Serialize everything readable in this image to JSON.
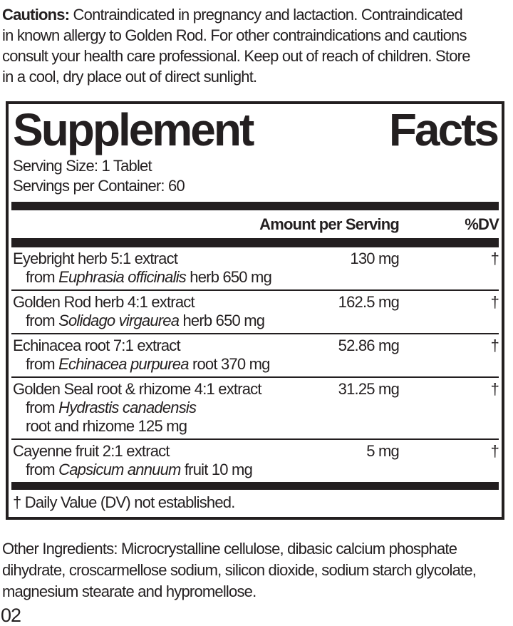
{
  "cautions": {
    "bold_label": "Cautions:",
    "line1_rest": " Contraindicated in pregnancy and lactaction. Contraindicated",
    "line2": "in known allergy to Golden Rod. For other contraindications and cautions",
    "line3": "consult your health care professional. Keep out of reach of children. Store",
    "line4": "in a cool, dry place out of direct sunlight."
  },
  "facts": {
    "title_word1": "Supplement",
    "title_word2": "Facts",
    "serving_size": "Serving Size: 1 Tablet",
    "servings_per_container": "Servings per Container: 60",
    "header": {
      "amount": "Amount per Serving",
      "dv": "%DV"
    },
    "rows": [
      {
        "name": "Eyebright herb 5:1 extract",
        "amount": "130 mg",
        "dv": "†",
        "sub": [
          {
            "pre": "from ",
            "italic": "Euphrasia officinalis",
            "post": " herb 650 mg"
          }
        ]
      },
      {
        "name": "Golden Rod herb 4:1 extract",
        "amount": "162.5 mg",
        "dv": "†",
        "sub": [
          {
            "pre": "from ",
            "italic": "Solidago virgaurea",
            "post": " herb 650 mg"
          }
        ]
      },
      {
        "name": "Echinacea root 7:1 extract",
        "amount": "52.86 mg",
        "dv": "†",
        "sub": [
          {
            "pre": "from ",
            "italic": "Echinacea purpurea",
            "post": " root 370 mg"
          }
        ]
      },
      {
        "name": "Golden Seal root & rhizome 4:1 extract",
        "amount": "31.25 mg",
        "dv": "†",
        "sub": [
          {
            "pre": "from ",
            "italic": "Hydrastis canadensis",
            "post": ""
          },
          {
            "pre": "root and rhizome 125 mg",
            "italic": "",
            "post": ""
          }
        ]
      },
      {
        "name": "Cayenne fruit 2:1 extract",
        "amount": "5 mg",
        "dv": "†",
        "sub": [
          {
            "pre": "from ",
            "italic": "Capsicum annuum",
            "post": " fruit 10 mg"
          }
        ]
      }
    ],
    "footnote": "† Daily Value (DV) not established."
  },
  "other_ingredients": {
    "line1": "Other Ingredients: Microcrystalline cellulose, dibasic calcium phosphate",
    "line2": "dihydrate, croscarmellose sodium, silicon dioxide, sodium starch glycolate,",
    "line3": "magnesium stearate and hypromellose."
  },
  "footer_code": "02",
  "colors": {
    "ink": "#231f20",
    "background": "#ffffff"
  }
}
